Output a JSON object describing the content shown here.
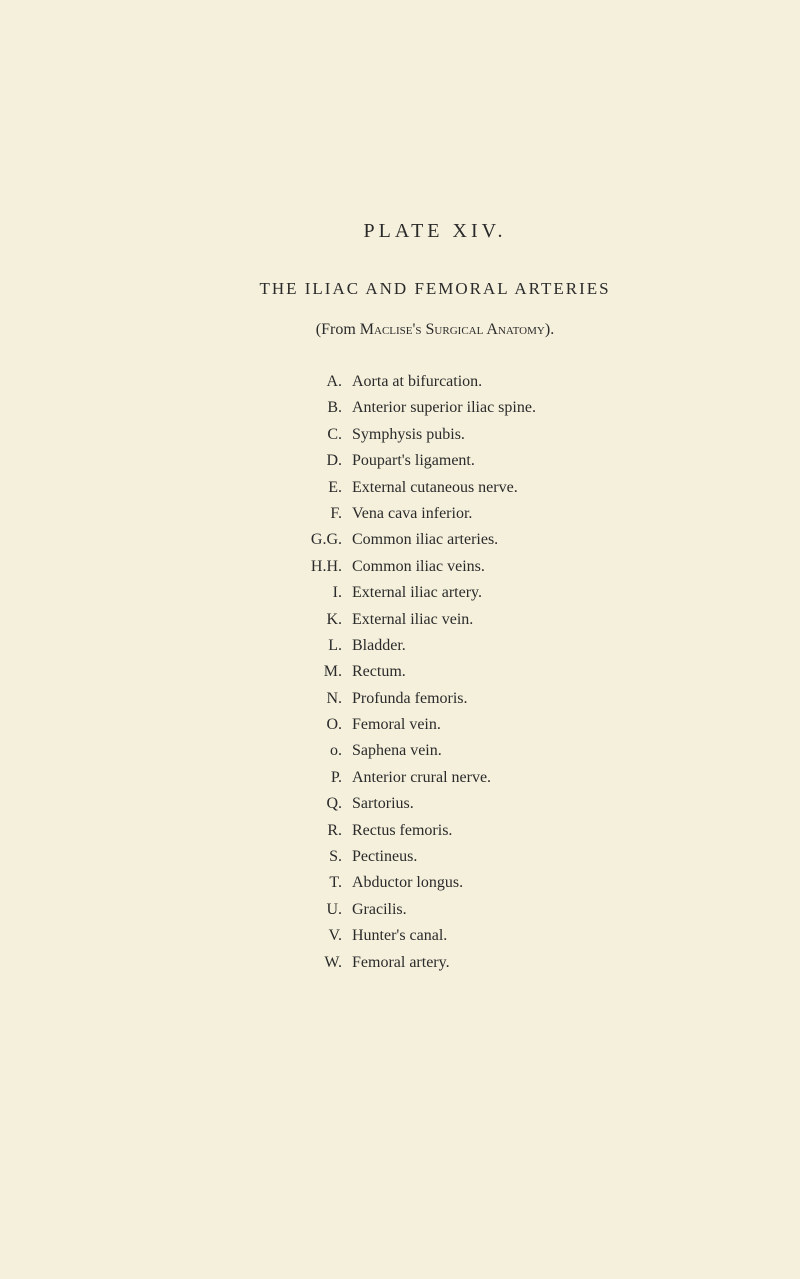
{
  "plate_title": "PLATE  XIV.",
  "heading": "THE  ILIAC  AND  FEMORAL  ARTERIES",
  "source_prefix": "(From ",
  "source_name1": "Maclise's ",
  "source_name2": "Surgical Anatomy",
  "source_suffix": ").",
  "items": [
    {
      "label": "A.",
      "desc": "Aorta at bifurcation."
    },
    {
      "label": "B.",
      "desc": "Anterior superior iliac spine."
    },
    {
      "label": "C.",
      "desc": "Symphysis pubis."
    },
    {
      "label": "D.",
      "desc": "Poupart's ligament."
    },
    {
      "label": "E.",
      "desc": "External cutaneous nerve."
    },
    {
      "label": "F.",
      "desc": "Vena cava inferior."
    },
    {
      "label": "G.G.",
      "desc": "Common iliac arteries."
    },
    {
      "label": "H.H.",
      "desc": "Common iliac veins."
    },
    {
      "label": "I.",
      "desc": "External iliac artery."
    },
    {
      "label": "K.",
      "desc": "External iliac vein."
    },
    {
      "label": "L.",
      "desc": "Bladder."
    },
    {
      "label": "M.",
      "desc": "Rectum."
    },
    {
      "label": "N.",
      "desc": "Profunda femoris."
    },
    {
      "label": "O.",
      "desc": "Femoral vein."
    },
    {
      "label": "o.",
      "desc": "Saphena vein."
    },
    {
      "label": "P.",
      "desc": "Anterior crural nerve."
    },
    {
      "label": "Q.",
      "desc": "Sartorius."
    },
    {
      "label": "R.",
      "desc": "Rectus femoris."
    },
    {
      "label": "S.",
      "desc": "Pectineus."
    },
    {
      "label": "T.",
      "desc": "Abductor longus."
    },
    {
      "label": "U.",
      "desc": "Gracilis."
    },
    {
      "label": "V.",
      "desc": "Hunter's canal."
    },
    {
      "label": "W.",
      "desc": "Femoral artery."
    }
  ]
}
